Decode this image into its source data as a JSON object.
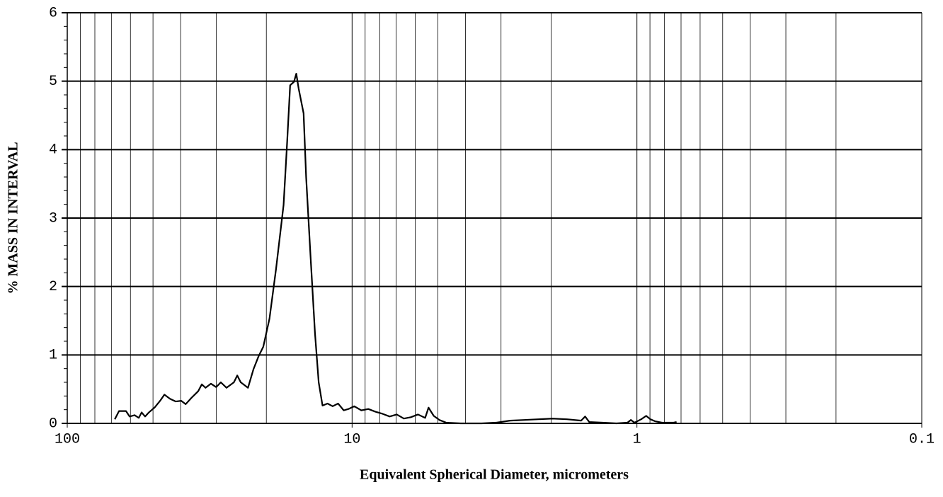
{
  "chart_data": {
    "type": "line",
    "x_label": "Equivalent Spherical Diameter, micrometers",
    "y_label": "% MASS IN INTERVAL",
    "xscale": "log",
    "xlim": [
      100,
      0.1
    ],
    "xticks": [
      100,
      10,
      1,
      0.1
    ],
    "xminorticks": [
      90,
      80,
      70,
      60,
      50,
      40,
      30,
      20,
      9,
      8,
      7,
      6,
      5,
      4,
      3,
      2,
      0.9,
      0.8,
      0.7,
      0.6,
      0.5,
      0.4,
      0.3,
      0.2
    ],
    "ylim": [
      0,
      6
    ],
    "yticks": [
      0,
      1,
      2,
      3,
      4,
      5,
      6
    ],
    "yminorticks": [
      0.2,
      0.4,
      0.6,
      0.8,
      1.2,
      1.4,
      1.6,
      1.8,
      2.2,
      2.4,
      2.6,
      2.8,
      3.2,
      3.4,
      3.6,
      3.8,
      4.2,
      4.4,
      4.6,
      4.8,
      5.2,
      5.4,
      5.6,
      5.8
    ],
    "grid": true,
    "x": [
      68.1,
      65.8,
      62.2,
      60.4,
      58.0,
      56.1,
      54.8,
      53.3,
      51.7,
      49.4,
      47.2,
      45.6,
      43.6,
      41.6,
      39.8,
      38.4,
      36.7,
      34.7,
      33.7,
      32.7,
      31.3,
      30.0,
      28.9,
      27.6,
      26.0,
      25.3,
      24.6,
      23.2,
      22.2,
      21.3,
      20.5,
      19.5,
      18.5,
      17.4,
      16.9,
      16.5,
      16.0,
      15.7,
      15.4,
      14.8,
      14.5,
      14.0,
      13.5,
      13.1,
      12.7,
      12.2,
      11.7,
      11.2,
      10.7,
      10.3,
      9.83,
      9.28,
      8.77,
      8.28,
      7.82,
      7.38,
      6.97,
      6.58,
      6.22,
      5.87,
      5.54,
      5.39,
      5.17,
      4.94,
      4.67,
      4.16,
      3.51,
      3.13,
      2.79,
      2.49,
      2.22,
      1.98,
      1.76,
      1.57,
      1.52,
      1.47,
      1.32,
      1.18,
      1.08,
      1.05,
      1.02,
      0.966,
      0.928,
      0.897,
      0.862,
      0.814,
      0.746,
      0.726
    ],
    "series": [
      {
        "color": "#000000",
        "values": [
          0.06,
          0.18,
          0.18,
          0.1,
          0.12,
          0.08,
          0.16,
          0.1,
          0.16,
          0.23,
          0.33,
          0.42,
          0.36,
          0.32,
          0.33,
          0.28,
          0.37,
          0.47,
          0.57,
          0.52,
          0.58,
          0.53,
          0.6,
          0.52,
          0.6,
          0.7,
          0.6,
          0.52,
          0.79,
          0.98,
          1.12,
          1.53,
          2.25,
          3.19,
          4.12,
          4.94,
          4.99,
          5.11,
          4.89,
          4.53,
          3.6,
          2.46,
          1.32,
          0.6,
          0.26,
          0.29,
          0.25,
          0.29,
          0.19,
          0.21,
          0.25,
          0.19,
          0.21,
          0.17,
          0.14,
          0.1,
          0.13,
          0.07,
          0.09,
          0.13,
          0.08,
          0.23,
          0.11,
          0.05,
          0.01,
          0,
          0,
          0.01,
          0.04,
          0.05,
          0.06,
          0.07,
          0.06,
          0.04,
          0.1,
          0.02,
          0.01,
          0,
          0.01,
          0.05,
          0.01,
          0.06,
          0.11,
          0.06,
          0.03,
          0.01,
          0.01,
          0.02
        ]
      }
    ]
  }
}
